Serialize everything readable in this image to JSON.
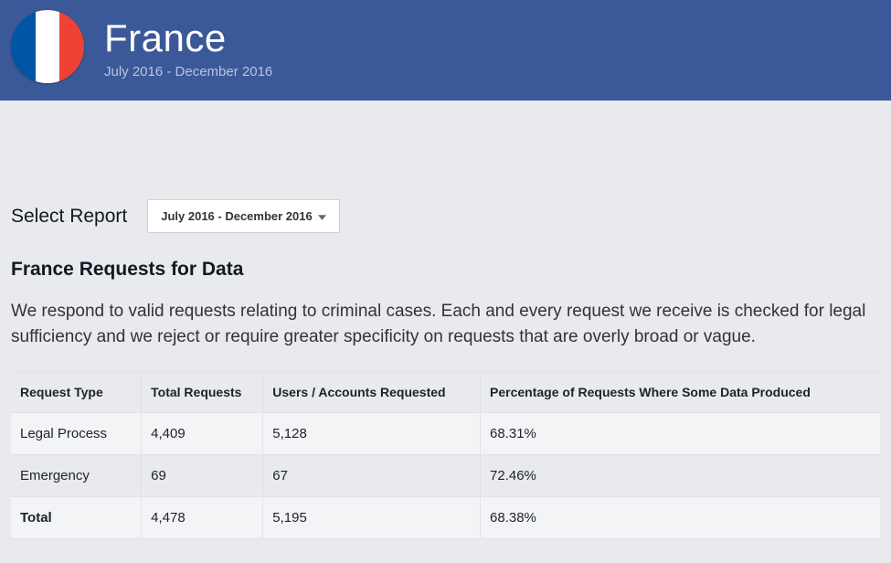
{
  "header": {
    "country": "France",
    "period": "July 2016 - December 2016",
    "flag_colors": {
      "left": "#0055a4",
      "middle": "#ffffff",
      "right": "#ef4135"
    },
    "background_color": "#3b5998"
  },
  "report_selector": {
    "label": "Select Report",
    "selected": "July 2016 - December 2016"
  },
  "section": {
    "title": "France Requests for Data",
    "description": "We respond to valid requests relating to criminal cases. Each and every request we receive is checked for legal sufficiency and we reject or require greater specificity on requests that are overly broad or vague."
  },
  "table": {
    "columns": [
      "Request Type",
      "Total Requests",
      "Users / Accounts Requested",
      "Percentage of Requests Where Some Data Produced"
    ],
    "rows": [
      {
        "type": "Legal Process",
        "total_requests": "4,409",
        "users_accounts": "5,128",
        "percentage": "68.31%",
        "is_total": false
      },
      {
        "type": "Emergency",
        "total_requests": "69",
        "users_accounts": "67",
        "percentage": "72.46%",
        "is_total": false
      },
      {
        "type": "Total",
        "total_requests": "4,478",
        "users_accounts": "5,195",
        "percentage": "68.38%",
        "is_total": true
      }
    ],
    "col_widths_pct": [
      15,
      14,
      25,
      46
    ]
  },
  "page": {
    "background_color": "#e9eaed"
  }
}
